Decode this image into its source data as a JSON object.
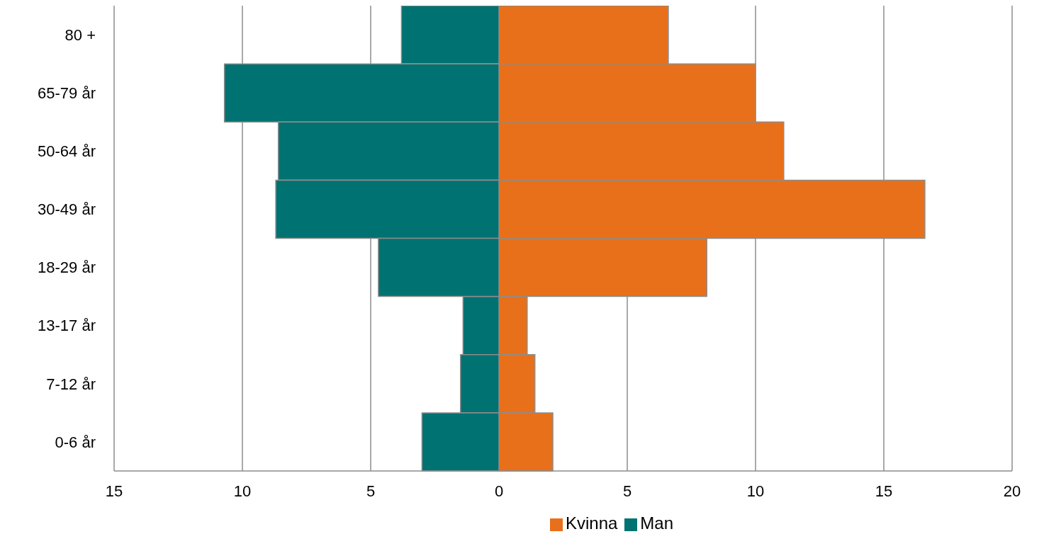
{
  "chart_data": {
    "type": "bar",
    "orientation": "horizontal",
    "stacked": true,
    "categories": [
      "80 +",
      "65-79 år",
      "50-64 år",
      "30-49 år",
      "18-29 år",
      "13-17 år",
      "7-12 år",
      "0-6 år"
    ],
    "series": [
      {
        "name": "Kvinna",
        "color": "#e8701a",
        "values": [
          6.6,
          10.0,
          11.1,
          16.6,
          8.1,
          1.1,
          1.4,
          2.1
        ]
      },
      {
        "name": "Man",
        "color": "#007272",
        "values": [
          -3.8,
          -10.7,
          -8.6,
          -8.7,
          -4.7,
          -1.4,
          -1.5,
          -3.0
        ]
      }
    ],
    "xlim": [
      -15,
      20
    ],
    "xticks": [
      {
        "value": -15,
        "label": "15"
      },
      {
        "value": -10,
        "label": "10"
      },
      {
        "value": -5,
        "label": "5"
      },
      0,
      5,
      10,
      15,
      20
    ],
    "grid": "x",
    "legend": "bottom"
  }
}
